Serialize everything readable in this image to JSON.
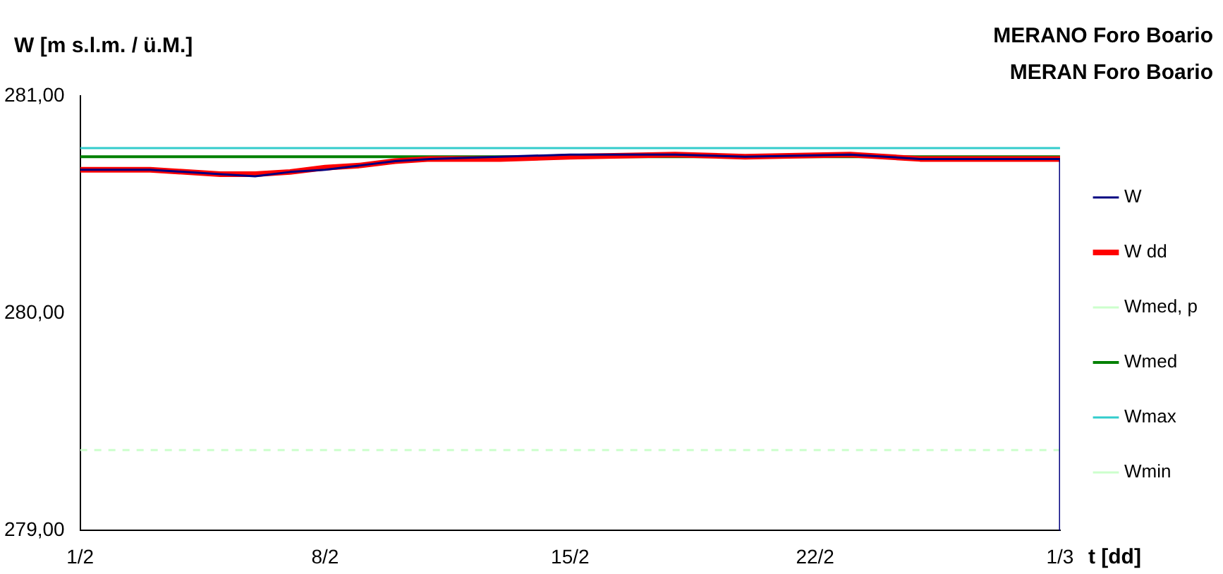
{
  "chart_data": {
    "type": "line",
    "title": "MERANO Foro Boario",
    "subtitle": "MERAN Foro Boario",
    "ylabel": "W [m s.l.m. / ü.M.]",
    "xlabel": "t [dd]",
    "x": [
      "--02-01",
      "--02-03",
      "--02-05",
      "--02-06",
      "--02-07",
      "--02-08",
      "--02-09",
      "--02-10",
      "--02-11",
      "--02-13",
      "--02-15",
      "--02-18",
      "--02-20",
      "--02-23",
      "--02-25",
      "--02-28",
      "--03-01",
      "--03-01"
    ],
    "series": [
      {
        "name": "W",
        "color": "#000080",
        "values": [
          280.66,
          280.66,
          280.64,
          280.63,
          280.65,
          280.66,
          280.68,
          280.7,
          280.71,
          280.72,
          280.73,
          280.73,
          280.72,
          280.73,
          280.71,
          280.71,
          280.71,
          279.0
        ]
      },
      {
        "name": "W dd",
        "color": "#ff0000",
        "values": [
          280.66,
          280.66,
          280.64,
          280.64,
          280.65,
          280.67,
          280.68,
          280.7,
          280.71,
          280.71,
          280.72,
          280.73,
          280.72,
          280.73,
          280.71,
          280.71,
          280.71,
          null
        ]
      },
      {
        "name": "Wmed, p",
        "color": "#ccffcc",
        "line_style": "dashed",
        "x": [
          "--02-01",
          "--03-01"
        ],
        "values": [
          279.37,
          279.37
        ]
      },
      {
        "name": "Wmed",
        "color": "#008000",
        "x": [
          "--02-01",
          "--03-01"
        ],
        "values": [
          280.72,
          280.72
        ]
      },
      {
        "name": "Wmax",
        "color": "#33cccc",
        "x": [
          "--02-01",
          "--03-01"
        ],
        "values": [
          280.76,
          280.76
        ]
      },
      {
        "name": "Wmin",
        "color": "#ccffcc",
        "values": [
          null,
          null,
          null,
          null,
          null,
          null,
          null,
          null,
          null,
          null,
          null,
          null,
          null,
          null,
          null,
          null,
          null,
          null
        ]
      }
    ],
    "xlim": [
      "--02-01",
      "--03-01"
    ],
    "xticks": [
      {
        "value": "--02-01",
        "label": "1/2"
      },
      {
        "value": "--02-08",
        "label": "8/2"
      },
      {
        "value": "--02-15",
        "label": "15/2"
      },
      {
        "value": "--02-22",
        "label": "22/2"
      },
      {
        "value": "--03-01",
        "label": "1/3"
      }
    ],
    "ylim": [
      279,
      281
    ],
    "yticks": [
      {
        "value": 279,
        "label": "279,00"
      },
      {
        "value": 280,
        "label": "280,00"
      },
      {
        "value": 281,
        "label": "281,00"
      }
    ],
    "grid": false,
    "legend": "right",
    "marker": "none"
  }
}
